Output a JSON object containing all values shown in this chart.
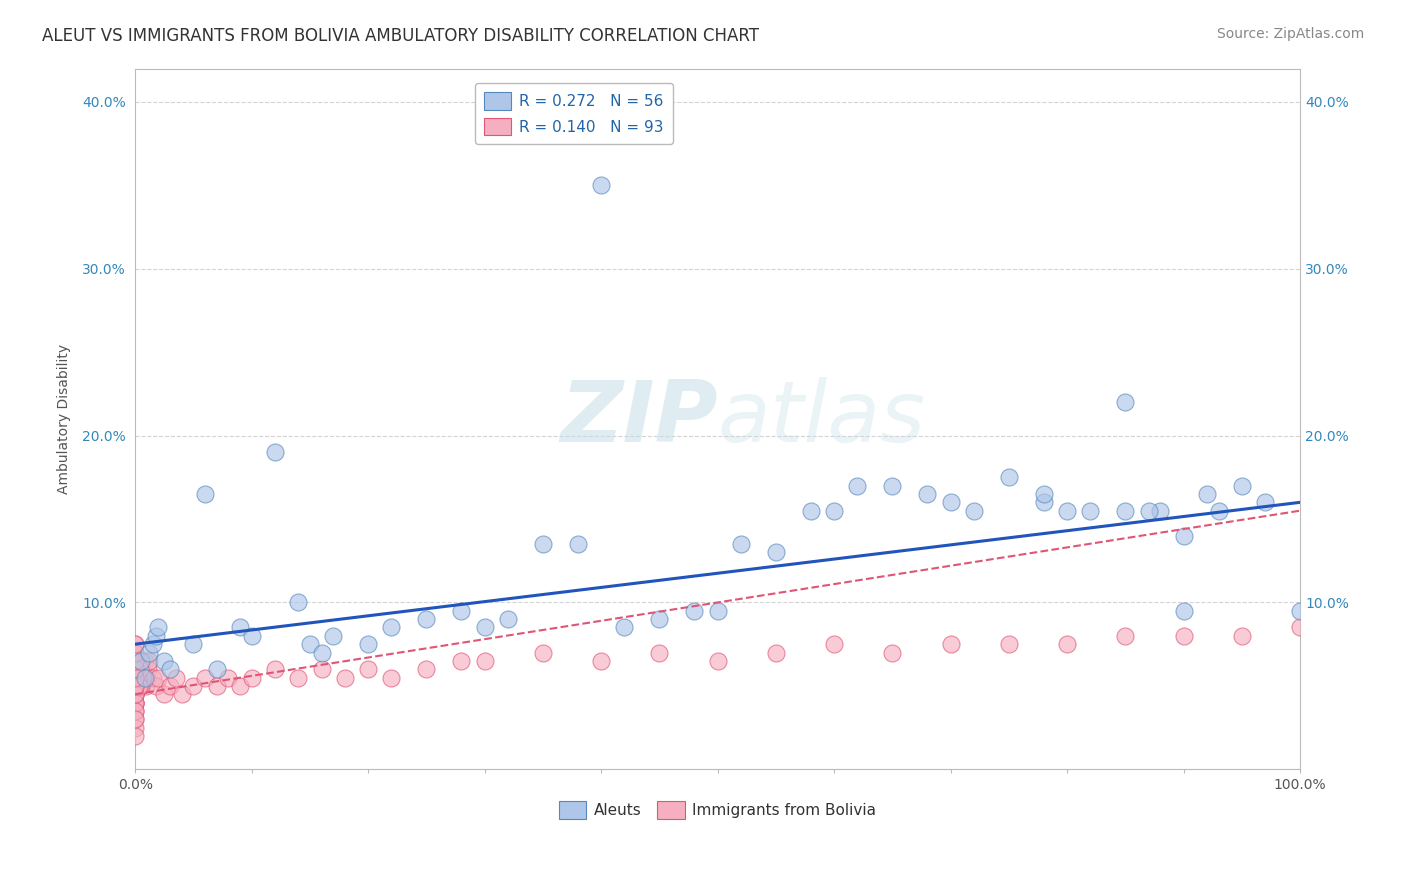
{
  "title": "ALEUT VS IMMIGRANTS FROM BOLIVIA AMBULATORY DISABILITY CORRELATION CHART",
  "source": "Source: ZipAtlas.com",
  "ylabel": "Ambulatory Disability",
  "watermark": "ZIPatlas",
  "legend_r1": "R = 0.272",
  "legend_n1": "N = 56",
  "legend_r2": "R = 0.140",
  "legend_n2": "N = 93",
  "xlim": [
    0,
    1.0
  ],
  "ylim": [
    0,
    0.42
  ],
  "background": "#ffffff",
  "grid_color": "#c8c8c8",
  "aleuts_color": "#aec6e8",
  "aleuts_edge": "#5588bb",
  "bolivia_color": "#f5afc0",
  "bolivia_edge": "#e05575",
  "line_aleuts_color": "#2255bb",
  "line_bolivia_color": "#e05575",
  "title_fontsize": 12,
  "source_fontsize": 10,
  "label_fontsize": 10,
  "tick_fontsize": 10,
  "watermark_color": "#cce5f0",
  "watermark_alpha": 0.6,
  "aleuts_x": [
    0.005,
    0.008,
    0.012,
    0.015,
    0.018,
    0.02,
    0.025,
    0.03,
    0.05,
    0.06,
    0.07,
    0.09,
    0.1,
    0.12,
    0.14,
    0.15,
    0.16,
    0.17,
    0.2,
    0.22,
    0.25,
    0.28,
    0.3,
    0.32,
    0.35,
    0.38,
    0.4,
    0.42,
    0.45,
    0.48,
    0.5,
    0.52,
    0.55,
    0.58,
    0.6,
    0.62,
    0.65,
    0.68,
    0.7,
    0.72,
    0.75,
    0.78,
    0.8,
    0.82,
    0.85,
    0.88,
    0.9,
    0.92,
    0.78,
    0.85,
    0.87,
    0.9,
    0.93,
    0.95,
    0.97,
    1.0
  ],
  "aleuts_y": [
    0.065,
    0.055,
    0.07,
    0.075,
    0.08,
    0.085,
    0.065,
    0.06,
    0.075,
    0.165,
    0.06,
    0.085,
    0.08,
    0.19,
    0.1,
    0.075,
    0.07,
    0.08,
    0.075,
    0.085,
    0.09,
    0.095,
    0.085,
    0.09,
    0.135,
    0.135,
    0.35,
    0.085,
    0.09,
    0.095,
    0.095,
    0.135,
    0.13,
    0.155,
    0.155,
    0.17,
    0.17,
    0.165,
    0.16,
    0.155,
    0.175,
    0.16,
    0.155,
    0.155,
    0.22,
    0.155,
    0.14,
    0.165,
    0.165,
    0.155,
    0.155,
    0.095,
    0.155,
    0.17,
    0.16,
    0.095
  ],
  "bolivia_x_cluster": [
    0.0,
    0.0,
    0.0,
    0.0,
    0.0,
    0.0,
    0.0,
    0.0,
    0.0,
    0.0,
    0.0,
    0.0,
    0.0,
    0.0,
    0.0,
    0.0,
    0.0,
    0.0,
    0.0,
    0.0,
    0.0,
    0.0,
    0.0,
    0.0,
    0.0,
    0.0,
    0.0,
    0.0,
    0.0,
    0.0,
    0.002,
    0.003,
    0.004,
    0.005,
    0.006,
    0.008,
    0.009,
    0.01,
    0.011,
    0.012,
    0.015,
    0.018,
    0.02,
    0.025,
    0.03,
    0.035,
    0.04,
    0.05,
    0.06,
    0.07,
    0.08,
    0.09,
    0.1,
    0.12,
    0.14,
    0.16,
    0.18,
    0.2,
    0.22,
    0.25,
    0.28,
    0.3,
    0.35,
    0.4,
    0.45,
    0.5,
    0.55,
    0.6,
    0.65,
    0.7,
    0.75,
    0.8,
    0.85,
    0.9,
    0.95,
    1.0,
    0.003,
    0.004,
    0.005,
    0.007,
    0.001,
    0.002,
    0.003,
    0.004,
    0.0,
    0.0,
    0.0,
    0.0,
    0.0,
    0.0,
    0.0,
    0.0,
    0.0
  ],
  "bolivia_y_cluster": [
    0.045,
    0.05,
    0.055,
    0.04,
    0.06,
    0.065,
    0.05,
    0.045,
    0.04,
    0.035,
    0.03,
    0.025,
    0.02,
    0.065,
    0.07,
    0.075,
    0.065,
    0.055,
    0.045,
    0.04,
    0.05,
    0.055,
    0.06,
    0.065,
    0.055,
    0.05,
    0.045,
    0.04,
    0.035,
    0.03,
    0.05,
    0.055,
    0.05,
    0.055,
    0.06,
    0.065,
    0.05,
    0.055,
    0.06,
    0.065,
    0.055,
    0.05,
    0.055,
    0.045,
    0.05,
    0.055,
    0.045,
    0.05,
    0.055,
    0.05,
    0.055,
    0.05,
    0.055,
    0.06,
    0.055,
    0.06,
    0.055,
    0.06,
    0.055,
    0.06,
    0.065,
    0.065,
    0.07,
    0.065,
    0.07,
    0.065,
    0.07,
    0.075,
    0.07,
    0.075,
    0.075,
    0.075,
    0.08,
    0.08,
    0.08,
    0.085,
    0.05,
    0.05,
    0.05,
    0.055,
    0.06,
    0.055,
    0.05,
    0.06,
    0.055,
    0.05,
    0.045,
    0.05,
    0.055,
    0.06,
    0.065,
    0.07,
    0.075
  ]
}
